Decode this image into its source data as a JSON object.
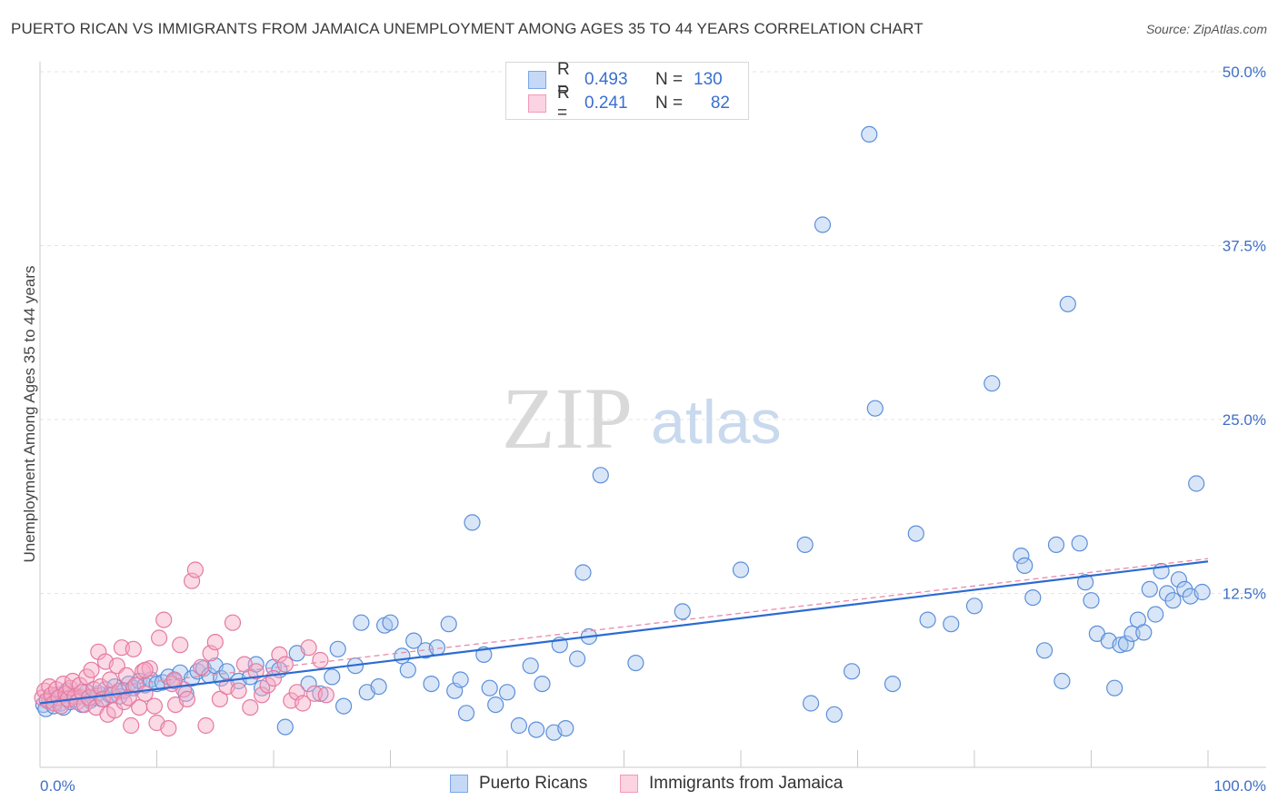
{
  "header": {
    "title": "PUERTO RICAN VS IMMIGRANTS FROM JAMAICA UNEMPLOYMENT AMONG AGES 35 TO 44 YEARS CORRELATION CHART",
    "source": "Source: ZipAtlas.com"
  },
  "watermark": {
    "zip": "ZIP",
    "atlas": "atlas"
  },
  "legend": {
    "rows": [
      {
        "r_label": "R =",
        "r_value": "0.493",
        "n_label": "N =",
        "n_value": "130",
        "color": "#7aa7e8"
      },
      {
        "r_label": "R =",
        "r_value": "0.241",
        "n_label": "N =",
        "n_value": "82",
        "color": "#f29ab8"
      }
    ]
  },
  "chart_data": {
    "type": "scatter",
    "title": "PUERTO RICAN VS IMMIGRANTS FROM JAMAICA UNEMPLOYMENT AMONG AGES 35 TO 44 YEARS CORRELATION CHART",
    "xlabel": "",
    "ylabel": "Unemployment Among Ages 35 to 44 years",
    "xlim": [
      0,
      100
    ],
    "ylim": [
      0,
      50
    ],
    "x_tick_labels": {
      "min": "0.0%",
      "max": "100.0%"
    },
    "y_ticks": [
      {
        "value": 12.5,
        "label": "12.5%"
      },
      {
        "value": 25.0,
        "label": "25.0%"
      },
      {
        "value": 37.5,
        "label": "37.5%"
      },
      {
        "value": 50.0,
        "label": "50.0%"
      }
    ],
    "grid": true,
    "legend_position": "top-center",
    "series": [
      {
        "name": "Puerto Ricans",
        "color": "#7aa7e8",
        "stroke": "#5b8fd9",
        "trend": {
          "x": [
            0,
            100
          ],
          "y": [
            4.6,
            14.8
          ],
          "color": "#2c6bd1"
        },
        "points": [
          [
            0.3,
            4.5
          ],
          [
            0.5,
            4.2
          ],
          [
            0.8,
            4.8
          ],
          [
            1.0,
            5.0
          ],
          [
            1.2,
            4.4
          ],
          [
            1.5,
            5.2
          ],
          [
            1.8,
            4.6
          ],
          [
            2.0,
            4.3
          ],
          [
            2.3,
            5.5
          ],
          [
            2.6,
            4.7
          ],
          [
            3.0,
            4.9
          ],
          [
            3.3,
            5.1
          ],
          [
            3.6,
            4.5
          ],
          [
            4.0,
            5.4
          ],
          [
            4.3,
            4.8
          ],
          [
            4.6,
            5.0
          ],
          [
            5.0,
            5.3
          ],
          [
            5.3,
            4.9
          ],
          [
            5.6,
            5.6
          ],
          [
            6.0,
            5.2
          ],
          [
            6.4,
            5.8
          ],
          [
            6.8,
            5.1
          ],
          [
            7.2,
            5.5
          ],
          [
            7.6,
            6.0
          ],
          [
            8.0,
            5.7
          ],
          [
            8.5,
            6.2
          ],
          [
            9.0,
            5.9
          ],
          [
            9.5,
            6.3
          ],
          [
            10.0,
            6.0
          ],
          [
            10.5,
            6.1
          ],
          [
            11.0,
            6.5
          ],
          [
            11.5,
            6.2
          ],
          [
            12.0,
            6.8
          ],
          [
            12.5,
            5.3
          ],
          [
            13.0,
            6.4
          ],
          [
            13.5,
            6.9
          ],
          [
            14.0,
            7.1
          ],
          [
            14.5,
            6.6
          ],
          [
            15.0,
            7.3
          ],
          [
            15.5,
            6.4
          ],
          [
            16.0,
            6.9
          ],
          [
            17.0,
            6.2
          ],
          [
            18.0,
            6.5
          ],
          [
            18.5,
            7.4
          ],
          [
            19.0,
            5.7
          ],
          [
            20.0,
            7.2
          ],
          [
            20.5,
            7.0
          ],
          [
            21.0,
            2.9
          ],
          [
            22.0,
            8.2
          ],
          [
            23.0,
            6.0
          ],
          [
            24.0,
            5.3
          ],
          [
            25.0,
            6.5
          ],
          [
            25.5,
            8.5
          ],
          [
            26.0,
            4.4
          ],
          [
            27.0,
            7.3
          ],
          [
            27.5,
            10.4
          ],
          [
            28.0,
            5.4
          ],
          [
            29.0,
            5.8
          ],
          [
            29.5,
            10.2
          ],
          [
            30.0,
            10.4
          ],
          [
            31.0,
            8.0
          ],
          [
            31.5,
            7.0
          ],
          [
            32.0,
            9.1
          ],
          [
            33.0,
            8.4
          ],
          [
            33.5,
            6.0
          ],
          [
            34.0,
            8.6
          ],
          [
            35.0,
            10.3
          ],
          [
            35.5,
            5.5
          ],
          [
            36.0,
            6.3
          ],
          [
            36.5,
            3.9
          ],
          [
            37.0,
            17.6
          ],
          [
            38.0,
            8.1
          ],
          [
            38.5,
            5.7
          ],
          [
            39.0,
            4.5
          ],
          [
            40.0,
            5.4
          ],
          [
            41.0,
            3.0
          ],
          [
            42.0,
            7.3
          ],
          [
            42.5,
            2.7
          ],
          [
            43.0,
            6.0
          ],
          [
            44.0,
            2.5
          ],
          [
            44.5,
            8.8
          ],
          [
            45.0,
            2.8
          ],
          [
            46.0,
            7.8
          ],
          [
            46.5,
            14.0
          ],
          [
            47.0,
            9.4
          ],
          [
            48.0,
            21.0
          ],
          [
            51.0,
            7.5
          ],
          [
            55.0,
            11.2
          ],
          [
            60.0,
            14.2
          ],
          [
            65.5,
            16.0
          ],
          [
            66.0,
            4.6
          ],
          [
            67.0,
            39.0
          ],
          [
            68.0,
            3.8
          ],
          [
            69.5,
            6.9
          ],
          [
            71.0,
            45.5
          ],
          [
            71.5,
            25.8
          ],
          [
            73.0,
            6.0
          ],
          [
            75.0,
            16.8
          ],
          [
            76.0,
            10.6
          ],
          [
            78.0,
            10.3
          ],
          [
            80.0,
            11.6
          ],
          [
            81.5,
            27.6
          ],
          [
            84.0,
            15.2
          ],
          [
            84.3,
            14.5
          ],
          [
            85.0,
            12.2
          ],
          [
            86.0,
            8.4
          ],
          [
            87.0,
            16.0
          ],
          [
            87.5,
            6.2
          ],
          [
            88.0,
            33.3
          ],
          [
            89.0,
            16.1
          ],
          [
            89.5,
            13.3
          ],
          [
            90.0,
            12.0
          ],
          [
            90.5,
            9.6
          ],
          [
            91.5,
            9.1
          ],
          [
            92.0,
            5.7
          ],
          [
            92.5,
            8.8
          ],
          [
            93.0,
            8.9
          ],
          [
            93.5,
            9.6
          ],
          [
            94.0,
            10.6
          ],
          [
            94.5,
            9.7
          ],
          [
            95.0,
            12.8
          ],
          [
            95.5,
            11.0
          ],
          [
            96.0,
            14.1
          ],
          [
            96.5,
            12.5
          ],
          [
            97.0,
            12.0
          ],
          [
            97.5,
            13.5
          ],
          [
            98.0,
            12.8
          ],
          [
            98.5,
            12.3
          ],
          [
            99.0,
            20.4
          ],
          [
            99.5,
            12.6
          ]
        ]
      },
      {
        "name": "Immigrants from Jamaica",
        "color": "#f29ab8",
        "stroke": "#e57aa0",
        "trend": {
          "x": [
            0,
            100
          ],
          "y": [
            5.2,
            15.0
          ],
          "color": "#e98aa9"
        },
        "points": [
          [
            0.2,
            5.0
          ],
          [
            0.4,
            5.5
          ],
          [
            0.6,
            4.8
          ],
          [
            0.8,
            5.8
          ],
          [
            1.0,
            5.2
          ],
          [
            1.2,
            4.6
          ],
          [
            1.4,
            5.6
          ],
          [
            1.6,
            5.0
          ],
          [
            1.8,
            4.4
          ],
          [
            2.0,
            6.0
          ],
          [
            2.2,
            5.3
          ],
          [
            2.4,
            4.9
          ],
          [
            2.6,
            5.7
          ],
          [
            2.8,
            6.2
          ],
          [
            3.0,
            5.1
          ],
          [
            3.2,
            4.7
          ],
          [
            3.4,
            5.9
          ],
          [
            3.6,
            5.4
          ],
          [
            3.8,
            4.5
          ],
          [
            4.0,
            6.5
          ],
          [
            4.2,
            5.0
          ],
          [
            4.4,
            7.0
          ],
          [
            4.6,
            5.6
          ],
          [
            4.8,
            4.3
          ],
          [
            5.0,
            8.3
          ],
          [
            5.2,
            5.8
          ],
          [
            5.4,
            4.9
          ],
          [
            5.6,
            7.6
          ],
          [
            5.8,
            3.8
          ],
          [
            6.0,
            6.3
          ],
          [
            6.2,
            5.2
          ],
          [
            6.4,
            4.1
          ],
          [
            6.6,
            7.3
          ],
          [
            6.8,
            5.5
          ],
          [
            7.0,
            8.6
          ],
          [
            7.2,
            4.7
          ],
          [
            7.4,
            6.6
          ],
          [
            7.6,
            5.0
          ],
          [
            7.8,
            3.0
          ],
          [
            8.0,
            8.5
          ],
          [
            8.2,
            5.9
          ],
          [
            8.5,
            4.3
          ],
          [
            8.8,
            6.9
          ],
          [
            9.0,
            5.3
          ],
          [
            9.4,
            7.1
          ],
          [
            9.8,
            4.4
          ],
          [
            10.0,
            3.2
          ],
          [
            10.2,
            9.3
          ],
          [
            10.6,
            10.6
          ],
          [
            11.0,
            2.8
          ],
          [
            11.3,
            6.0
          ],
          [
            11.6,
            4.5
          ],
          [
            12.0,
            8.8
          ],
          [
            12.3,
            5.6
          ],
          [
            12.6,
            4.9
          ],
          [
            13.0,
            13.4
          ],
          [
            13.3,
            14.2
          ],
          [
            13.8,
            7.2
          ],
          [
            14.2,
            3.0
          ],
          [
            14.6,
            8.2
          ],
          [
            15.0,
            9.0
          ],
          [
            15.4,
            4.9
          ],
          [
            16.0,
            5.8
          ],
          [
            16.5,
            10.4
          ],
          [
            17.0,
            5.5
          ],
          [
            17.5,
            7.4
          ],
          [
            18.0,
            4.3
          ],
          [
            18.5,
            6.9
          ],
          [
            19.0,
            5.2
          ],
          [
            19.5,
            5.9
          ],
          [
            20.0,
            6.4
          ],
          [
            20.5,
            8.1
          ],
          [
            21.0,
            7.4
          ],
          [
            21.5,
            4.8
          ],
          [
            22.0,
            5.4
          ],
          [
            22.5,
            4.6
          ],
          [
            23.0,
            8.6
          ],
          [
            23.5,
            5.3
          ],
          [
            24.0,
            7.7
          ],
          [
            24.5,
            5.2
          ],
          [
            9.0,
            7.0
          ],
          [
            11.5,
            6.3
          ]
        ]
      }
    ]
  },
  "bottom_legend": {
    "items": [
      {
        "label": "Puerto Ricans",
        "color": "#7aa7e8"
      },
      {
        "label": "Immigrants from Jamaica",
        "color": "#f29ab8"
      }
    ]
  }
}
